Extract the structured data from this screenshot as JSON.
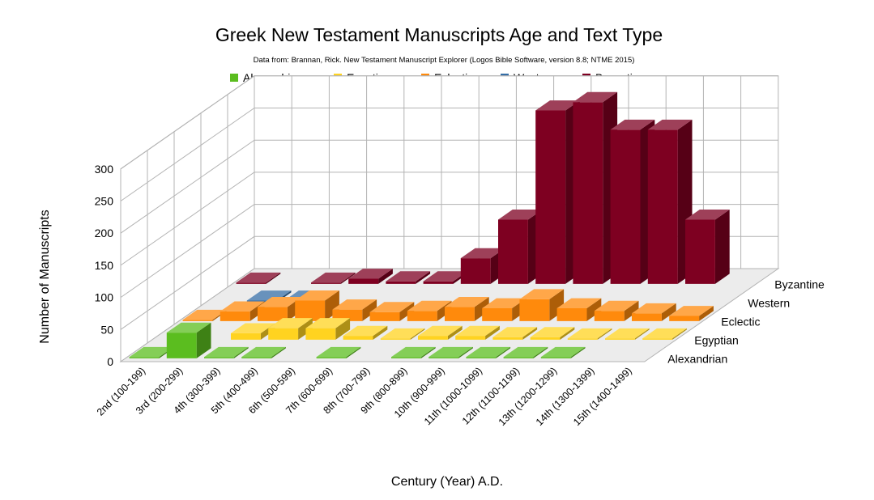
{
  "chart_data": {
    "type": "bar",
    "variant": "3d-deep",
    "title": "Greek New Testament Manuscripts Age and Text Type",
    "subtitle": "Data from: Brannan, Rick. New Testament Manuscript Explorer (Logos Bible Software, version 8.8; NTME 2015)",
    "xlabel": "Century (Year) A.D.",
    "ylabel": "Number of Manuscripts",
    "ylim": [
      0,
      300
    ],
    "yticks": [
      0,
      50,
      100,
      150,
      200,
      250,
      300
    ],
    "grid": true,
    "legend_position": "top",
    "categories": [
      "2nd (100-199)",
      "3rd (200-299)",
      "4th (300-399)",
      "5th (400-499)",
      "6th (500-599)",
      "7th (600-699)",
      "8th (700-799)",
      "9th (800-899)",
      "10th (900-999)",
      "11th (1000-1099)",
      "12th (1100-1199)",
      "13th (1200-1299)",
      "14th (1300-1399)",
      "15th (1400-1499)"
    ],
    "series": [
      {
        "name": "Alexandrian",
        "color": "#5bbd1f",
        "values": [
          2,
          40,
          2,
          2,
          0,
          2,
          0,
          2,
          2,
          2,
          2,
          2,
          0,
          0
        ]
      },
      {
        "name": "Egyptian",
        "color": "#ffd320",
        "values": [
          0,
          0,
          10,
          18,
          18,
          6,
          2,
          6,
          6,
          4,
          4,
          2,
          2,
          2
        ]
      },
      {
        "name": "Eclectic",
        "color": "#ff8a0c",
        "values": [
          2,
          15,
          22,
          32,
          18,
          14,
          16,
          22,
          20,
          34,
          20,
          16,
          12,
          8
        ]
      },
      {
        "name": "Western",
        "color": "#356ea6",
        "values": [
          0,
          3,
          3,
          0,
          0,
          0,
          0,
          0,
          0,
          0,
          0,
          0,
          0,
          0
        ]
      },
      {
        "name": "Byzantine",
        "color": "#7e0021",
        "values": [
          2,
          0,
          2,
          8,
          4,
          4,
          40,
          100,
          270,
          283,
          240,
          240,
          100,
          0
        ]
      }
    ]
  }
}
